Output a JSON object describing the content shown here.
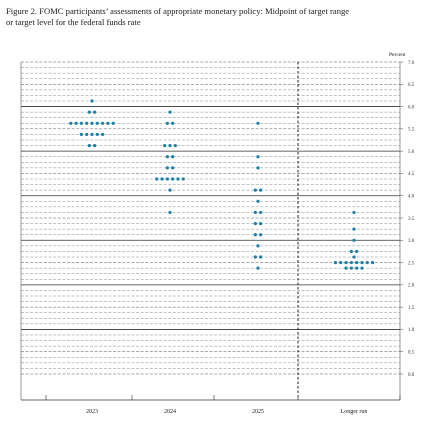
{
  "figure": {
    "title_line1": "Figure 2.  FOMC participants’ assessments of appropriate monetary policy:  Midpoint of target range",
    "title_line2": "or target level for the federal funds rate"
  },
  "chart_data": {
    "type": "scatter",
    "subtype": "dot plot",
    "unit_label": "Percent",
    "categories": [
      "2023",
      "2024",
      "2025",
      "Longer run"
    ],
    "ylim": [
      0,
      7.0
    ],
    "yticks": [
      "0.0",
      "0.5",
      "1.0",
      "1.5",
      "2.0",
      "2.5",
      "3.0",
      "3.5",
      "4.0",
      "4.5",
      "5.0",
      "5.5",
      "6.0",
      "6.5",
      "7.0"
    ],
    "grid": "horizontal, dashed minor lines every 0.125 with solid lines at each whole percent",
    "divider": "vertical dashed line between 2025 and Longer run",
    "dot_color": "#1b7fa8",
    "series": [
      {
        "category": "2023",
        "points": [
          {
            "y": 6.125,
            "count": 1
          },
          {
            "y": 5.875,
            "count": 2
          },
          {
            "y": 5.625,
            "count": 9
          },
          {
            "y": 5.375,
            "count": 5
          },
          {
            "y": 5.125,
            "count": 2
          }
        ]
      },
      {
        "category": "2024",
        "points": [
          {
            "y": 5.875,
            "count": 1
          },
          {
            "y": 5.625,
            "count": 2
          },
          {
            "y": 5.125,
            "count": 3
          },
          {
            "y": 4.875,
            "count": 2
          },
          {
            "y": 4.625,
            "count": 2
          },
          {
            "y": 4.375,
            "count": 6
          },
          {
            "y": 4.125,
            "count": 1
          },
          {
            "y": 3.625,
            "count": 1
          }
        ]
      },
      {
        "category": "2025",
        "points": [
          {
            "y": 5.625,
            "count": 1
          },
          {
            "y": 4.875,
            "count": 1
          },
          {
            "y": 4.625,
            "count": 1
          },
          {
            "y": 4.125,
            "count": 2
          },
          {
            "y": 3.875,
            "count": 1
          },
          {
            "y": 3.625,
            "count": 2
          },
          {
            "y": 3.375,
            "count": 2
          },
          {
            "y": 3.125,
            "count": 2
          },
          {
            "y": 2.875,
            "count": 1
          },
          {
            "y": 2.625,
            "count": 2
          },
          {
            "y": 2.375,
            "count": 1
          }
        ]
      },
      {
        "category": "Longer run",
        "points": [
          {
            "y": 3.625,
            "count": 1
          },
          {
            "y": 3.25,
            "count": 1
          },
          {
            "y": 3.0,
            "count": 1
          },
          {
            "y": 2.75,
            "count": 2
          },
          {
            "y": 2.625,
            "count": 1
          },
          {
            "y": 2.5,
            "count": 8
          },
          {
            "y": 2.375,
            "count": 4
          }
        ]
      }
    ]
  }
}
